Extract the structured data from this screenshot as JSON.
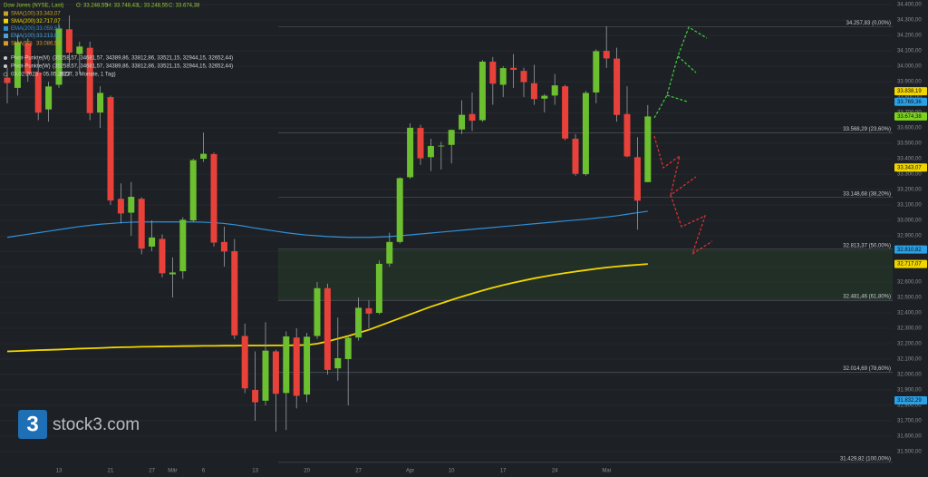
{
  "chart_data": {
    "type": "candlestick",
    "header": {
      "instrument": "Dow Jones (NYSE, Last)",
      "ohlc": [
        "O: 33.248,55",
        "H: 33.748,43",
        "L: 33.248,55",
        "C: 33.674,38"
      ]
    },
    "moving_averages": [
      {
        "name": "SMA(100)",
        "label": "33.343,07",
        "color": "#c9a227"
      },
      {
        "name": "SMA(200)",
        "label": "32.717,07",
        "color": "#f2d600",
        "values": [
          32150,
          32152,
          32155,
          32158,
          32160,
          32162,
          32165,
          32168,
          32170,
          32172,
          32175,
          32177,
          32178,
          32180,
          32181,
          32182,
          32183,
          32184,
          32185,
          32186,
          32186,
          32187,
          32187,
          32188,
          32188,
          32188,
          32189,
          32189,
          32190,
          32192,
          32200,
          32215,
          32232,
          32250,
          32270,
          32290,
          32315,
          32340,
          32365,
          32390,
          32415,
          32440,
          32462,
          32484,
          32505,
          32525,
          32545,
          32563,
          32580,
          32596,
          32610,
          32624,
          32636,
          32648,
          32658,
          32668,
          32677,
          32686,
          32694,
          32701,
          32707,
          32712,
          32717.07
        ]
      },
      {
        "name": "EMA(200)",
        "label": "33.059,53",
        "color": "#2f8fd8",
        "values": [
          32890,
          32900,
          32910,
          32920,
          32930,
          32940,
          32950,
          32960,
          32968,
          32975,
          32980,
          32985,
          32988,
          32990,
          32990,
          32990,
          32990,
          32990,
          32990,
          32988,
          32985,
          32980,
          32972,
          32962,
          32950,
          32940,
          32930,
          32920,
          32912,
          32905,
          32900,
          32895,
          32892,
          32890,
          32890,
          32890,
          32892,
          32895,
          32900,
          32906,
          32912,
          32918,
          32924,
          32930,
          32936,
          32942,
          32948,
          32954,
          32960,
          32966,
          32972,
          32978,
          32984,
          32990,
          32996,
          33002,
          33008,
          33015,
          33022,
          33030,
          33040,
          33050,
          33059.53
        ]
      },
      {
        "name": "EMA(100)",
        "label": "33.213,07",
        "color": "#4aa3df"
      },
      {
        "name": "SMA(50)",
        "label": "33.086,59",
        "color": "#d89a2a"
      }
    ],
    "pivots": [
      {
        "name": "Pivot-Punkte(M)",
        "label": "(35258,57, 34681,57, 34389,86, 33812,86, 33521,15, 32944,15, 32652,44)"
      },
      {
        "name": "Pivot-Punkte(W)",
        "label": "(35258,57, 34681,57, 34389,86, 33812,86, 33521,15, 32944,15, 32652,44)"
      }
    ],
    "date_range": "03.02.2023 - 05.05.2023",
    "date_note": "(EDT, 3 Monate, 1 Tag)",
    "logo": {
      "icon": "3",
      "text": "stock3.com"
    },
    "categories": [
      null,
      null,
      null,
      null,
      null,
      "13",
      null,
      null,
      null,
      null,
      "21",
      null,
      null,
      null,
      "27",
      null,
      "Mär",
      null,
      null,
      "6",
      null,
      null,
      null,
      null,
      "13",
      null,
      null,
      null,
      null,
      "20",
      null,
      null,
      null,
      null,
      "27",
      null,
      null,
      null,
      null,
      "Apr",
      null,
      null,
      null,
      "10",
      null,
      null,
      null,
      null,
      "17",
      null,
      null,
      null,
      null,
      "24",
      null,
      null,
      null,
      null,
      "Mai",
      null,
      null,
      null,
      null
    ],
    "open": [
      33926,
      33860,
      34150,
      33960,
      33720,
      33880,
      34240,
      34080,
      34120,
      33700,
      33800,
      33140,
      33050,
      33140,
      32830,
      32880,
      32650,
      32670,
      33000,
      33400,
      33430,
      32860,
      32800,
      32250,
      31900,
      31830,
      32150,
      31880,
      32240,
      31870,
      32250,
      32560,
      32040,
      32100,
      32240,
      32430,
      32400,
      32720,
      32860,
      33280,
      33600,
      33410,
      33480,
      33490,
      33590,
      33690,
      33650,
      34030,
      33880,
      33990,
      33970,
      33890,
      33790,
      33810,
      33870,
      33530,
      33300,
      33830,
      34100,
      34050,
      33690,
      33410,
      33248.55
    ],
    "high": [
      33990,
      34200,
      34180,
      34040,
      33900,
      34280,
      34330,
      34160,
      34160,
      33870,
      33810,
      33240,
      33250,
      33150,
      33000,
      32910,
      32760,
      33020,
      33400,
      33570,
      33440,
      32960,
      32880,
      32330,
      32150,
      32340,
      32160,
      32280,
      32300,
      32270,
      32600,
      32590,
      32370,
      32250,
      32500,
      32480,
      32740,
      32920,
      33280,
      33630,
      33620,
      33530,
      33510,
      33590,
      33780,
      33830,
      34040,
      34060,
      34000,
      34080,
      33990,
      34010,
      33820,
      33950,
      33880,
      33560,
      33840,
      34110,
      34260,
      34120,
      33870,
      33540,
      33748.43
    ],
    "low": [
      33760,
      33810,
      33900,
      33650,
      33640,
      33860,
      34000,
      33950,
      33650,
      33600,
      33100,
      32980,
      32900,
      32780,
      32800,
      32630,
      32500,
      32620,
      32990,
      33380,
      32830,
      32700,
      32230,
      31880,
      31700,
      31800,
      31630,
      31640,
      31780,
      31820,
      32230,
      32000,
      31960,
      31800,
      32220,
      32300,
      32390,
      32700,
      32850,
      33270,
      33360,
      33320,
      33330,
      33370,
      33560,
      33580,
      33640,
      33750,
      33800,
      33860,
      33800,
      33750,
      33700,
      33750,
      33520,
      33290,
      33290,
      33760,
      33990,
      33640,
      33410,
      32940,
      33248.55
    ],
    "close": [
      33891,
      34156,
      33949,
      33699,
      33869,
      34245,
      34089,
      34128,
      33696,
      33827,
      33129,
      33045,
      33153,
      32817,
      32889,
      32657,
      32662,
      33004,
      33391,
      33432,
      32856,
      32798,
      32254,
      31910,
      31820,
      32155,
      31875,
      32247,
      31862,
      32245,
      32560,
      32030,
      32106,
      32238,
      32433,
      32395,
      32718,
      32860,
      33274,
      33601,
      33403,
      33483,
      33485,
      33587,
      33685,
      33647,
      34030,
      33887,
      33988,
      33977,
      33897,
      33787,
      33809,
      33876,
      33531,
      33302,
      33827,
      34098,
      34051,
      33684,
      33415,
      33128,
      33674.38
    ],
    "up_color": "#6cc02f",
    "down_color": "#e8413a",
    "ylim": [
      31335,
      34430
    ],
    "yticks": [
      {
        "value": 31500,
        "label": "31.500,00"
      },
      {
        "value": 31600,
        "label": "31.600,00"
      },
      {
        "value": 31700,
        "label": "31.700,00"
      },
      {
        "value": 31800,
        "label": "31.800,00"
      },
      {
        "value": 31900,
        "label": "31.900,00"
      },
      {
        "value": 32000,
        "label": "32.000,00"
      },
      {
        "value": 32100,
        "label": "32.100,00"
      },
      {
        "value": 32200,
        "label": "32.200,00"
      },
      {
        "value": 32300,
        "label": "32.300,00"
      },
      {
        "value": 32400,
        "label": "32.400,00"
      },
      {
        "value": 32500,
        "label": "32.500,00"
      },
      {
        "value": 32600,
        "label": "32.600,00"
      },
      {
        "value": 32700,
        "label": "32.700,00"
      },
      {
        "value": 32800,
        "label": "32.800,00"
      },
      {
        "value": 32900,
        "label": "32.900,00"
      },
      {
        "value": 33000,
        "label": "33.000,00"
      },
      {
        "value": 33100,
        "label": "33.100,00"
      },
      {
        "value": 33200,
        "label": "33.200,00"
      },
      {
        "value": 33300,
        "label": "33.300,00"
      },
      {
        "value": 33400,
        "label": "33.400,00"
      },
      {
        "value": 33500,
        "label": "33.500,00"
      },
      {
        "value": 33600,
        "label": "33.600,00"
      },
      {
        "value": 33700,
        "label": "33.700,00"
      },
      {
        "value": 33800,
        "label": "33.800,00"
      },
      {
        "value": 33900,
        "label": "33.900,00"
      },
      {
        "value": 34000,
        "label": "34.000,00"
      },
      {
        "value": 34100,
        "label": "34.100,00"
      },
      {
        "value": 34200,
        "label": "34.200,00"
      },
      {
        "value": 34300,
        "label": "34.300,00"
      },
      {
        "value": 34400,
        "label": "34.400,00"
      }
    ],
    "grid": true,
    "fib_levels": [
      {
        "value": 34257.83,
        "label": "34.257,83 (0,00%)"
      },
      {
        "value": 33568.29,
        "label": "33.568,29 (23,60%)"
      },
      {
        "value": 33148.68,
        "label": "33.148,68 (38,20%)"
      },
      {
        "value": 32813.37,
        "label": "32.813,37 (50,00%)"
      },
      {
        "value": 32481.46,
        "label": "32.481,46 (61,80%)"
      },
      {
        "value": 32014.69,
        "label": "32.014,69 (78,60%)"
      },
      {
        "value": 31429.82,
        "label": "31.429,82 (100,00%)"
      }
    ],
    "price_labels": [
      {
        "value": 33838.19,
        "label": "33.838,19",
        "color": "#f2d600"
      },
      {
        "value": 33769.36,
        "label": "33.769,36",
        "color": "#2aa0e6"
      },
      {
        "value": 33674.38,
        "label": "33.674,38",
        "color": "#7ed321"
      },
      {
        "value": 33343.07,
        "label": "33.343,07",
        "color": "#f2d600"
      },
      {
        "value": 32810.82,
        "label": "32.810,82",
        "color": "#2aa0e6"
      },
      {
        "value": 32717.07,
        "label": "32.717,07",
        "color": "#f2d600"
      },
      {
        "value": 31832.29,
        "label": "31.832,29",
        "color": "#2aa0e6"
      }
    ]
  }
}
